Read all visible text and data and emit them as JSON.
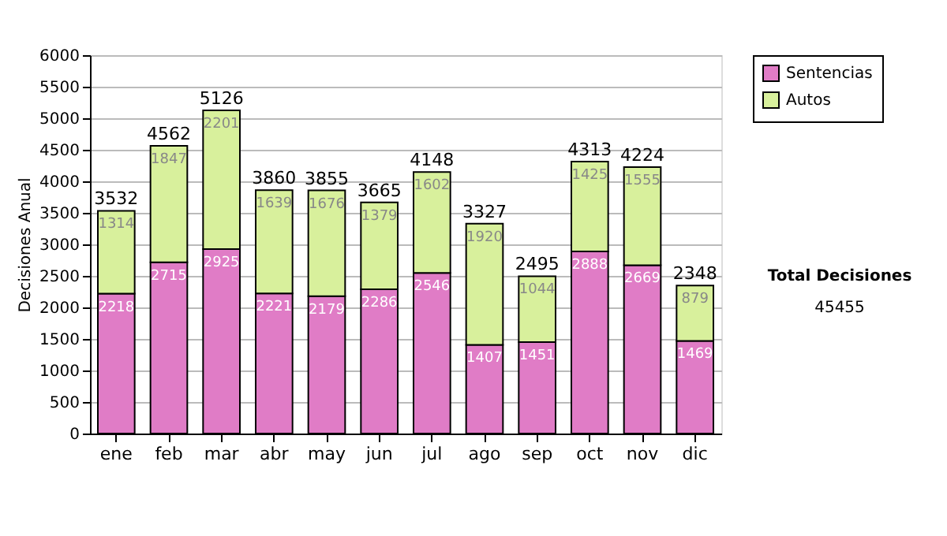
{
  "chart_data": {
    "type": "bar",
    "stacked": true,
    "ylabel": "Decisiones Anual",
    "categories": [
      "ene",
      "feb",
      "mar",
      "abr",
      "may",
      "jun",
      "jul",
      "ago",
      "sep",
      "oct",
      "nov",
      "dic"
    ],
    "series": [
      {
        "name": "Sentencias",
        "color": "#e07cc6",
        "values": [
          2218,
          2715,
          2925,
          2221,
          2179,
          2286,
          2546,
          1407,
          1451,
          2888,
          2669,
          1469
        ]
      },
      {
        "name": "Autos",
        "color": "#d8f09c",
        "values": [
          1314,
          1847,
          2201,
          1639,
          1676,
          1379,
          1602,
          1920,
          1044,
          1425,
          1555,
          879
        ]
      }
    ],
    "totals": [
      "3532",
      "4562",
      "5126",
      "3860",
      "3855",
      "3665",
      "4148",
      "3327",
      "2495",
      "4313",
      "4224",
      "2348"
    ],
    "data_labels": true,
    "ylim": [
      0,
      6000
    ],
    "yticks": [
      0,
      500,
      1000,
      1500,
      2000,
      2500,
      3000,
      3500,
      4000,
      4500,
      5000,
      5500,
      6000
    ],
    "grid": "y",
    "legend": "right",
    "annotations": [
      "Total Decisiones",
      "45455"
    ]
  }
}
